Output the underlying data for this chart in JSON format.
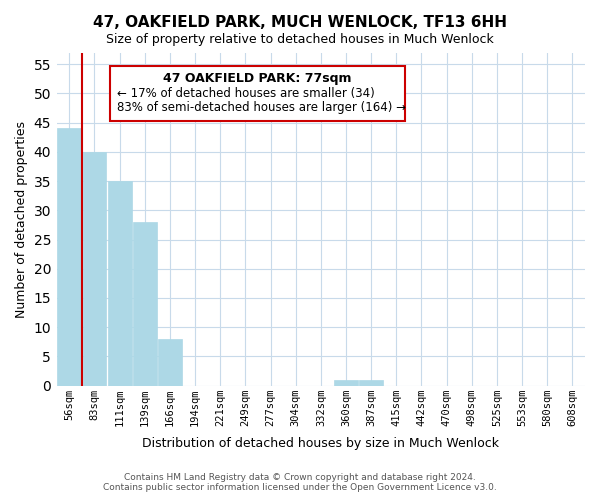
{
  "title": "47, OAKFIELD PARK, MUCH WENLOCK, TF13 6HH",
  "subtitle": "Size of property relative to detached houses in Much Wenlock",
  "xlabel": "Distribution of detached houses by size in Much Wenlock",
  "ylabel": "Number of detached properties",
  "bin_labels": [
    "56sqm",
    "83sqm",
    "111sqm",
    "139sqm",
    "166sqm",
    "194sqm",
    "221sqm",
    "249sqm",
    "277sqm",
    "304sqm",
    "332sqm",
    "360sqm",
    "387sqm",
    "415sqm",
    "442sqm",
    "470sqm",
    "498sqm",
    "525sqm",
    "553sqm",
    "580sqm",
    "608sqm"
  ],
  "bar_values": [
    44,
    40,
    35,
    28,
    8,
    0,
    0,
    0,
    0,
    0,
    0,
    1,
    1,
    0,
    0,
    0,
    0,
    0,
    0,
    0,
    0
  ],
  "bar_color": "#add8e6",
  "vline_color": "#cc0000",
  "annotation_title": "47 OAKFIELD PARK: 77sqm",
  "annotation_line1": "← 17% of detached houses are smaller (34)",
  "annotation_line2": "83% of semi-detached houses are larger (164) →",
  "annotation_box_color": "#ffffff",
  "annotation_box_edgecolor": "#cc0000",
  "ylim": [
    0,
    57
  ],
  "yticks": [
    0,
    5,
    10,
    15,
    20,
    25,
    30,
    35,
    40,
    45,
    50,
    55
  ],
  "footer_line1": "Contains HM Land Registry data © Crown copyright and database right 2024.",
  "footer_line2": "Contains public sector information licensed under the Open Government Licence v3.0.",
  "background_color": "#ffffff",
  "grid_color": "#c8daea"
}
